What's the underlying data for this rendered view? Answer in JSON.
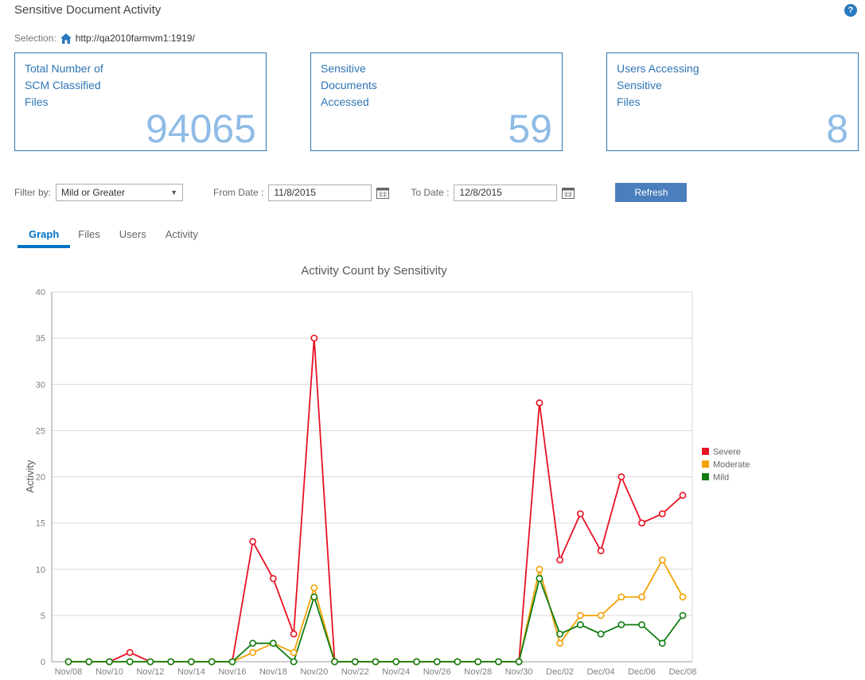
{
  "header": {
    "title": "Sensitive Document Activity",
    "help_label": "?"
  },
  "selection": {
    "label": "Selection:",
    "url": "http://qa2010farmvm1:1919/"
  },
  "cards": [
    {
      "lines": [
        "Total Number of",
        "SCM Classified",
        "Files"
      ],
      "value": "94065"
    },
    {
      "lines": [
        "Sensitive",
        "Documents",
        "Accessed"
      ],
      "value": "59"
    },
    {
      "lines": [
        "Users Accessing",
        "Sensitive",
        "Files"
      ],
      "value": "8"
    }
  ],
  "filters": {
    "filter_by_label": "Filter by:",
    "filter_value": "Mild or Greater",
    "from_label": "From Date :",
    "from_value": "11/8/2015",
    "to_label": "To Date :",
    "to_value": "12/8/2015",
    "refresh_label": "Refresh"
  },
  "tabs": [
    {
      "label": "Graph",
      "active": true
    },
    {
      "label": "Files",
      "active": false
    },
    {
      "label": "Users",
      "active": false
    },
    {
      "label": "Activity",
      "active": false
    }
  ],
  "chart_data": {
    "type": "line",
    "title": "Activity Count by Sensitivity",
    "xlabel": "",
    "ylabel": "Activity",
    "ylim": [
      0,
      40
    ],
    "ytick_step": 5,
    "grid": true,
    "legend_position": "right",
    "marker": "open-circle",
    "x": [
      "Nov/08",
      "Nov/09",
      "Nov/10",
      "Nov/11",
      "Nov/12",
      "Nov/13",
      "Nov/14",
      "Nov/15",
      "Nov/16",
      "Nov/17",
      "Nov/18",
      "Nov/19",
      "Nov/20",
      "Nov/21",
      "Nov/22",
      "Nov/23",
      "Nov/24",
      "Nov/25",
      "Nov/26",
      "Nov/27",
      "Nov/28",
      "Nov/29",
      "Nov/30",
      "Dec/01",
      "Dec/02",
      "Dec/03",
      "Dec/04",
      "Dec/05",
      "Dec/06",
      "Dec/07",
      "Dec/08"
    ],
    "xtick_every": 2,
    "series": [
      {
        "name": "Severe",
        "color": "#e81123",
        "values": [
          0,
          0,
          0,
          1,
          0,
          0,
          0,
          0,
          0,
          13,
          9,
          3,
          35,
          0,
          0,
          0,
          0,
          0,
          0,
          0,
          0,
          0,
          0,
          28,
          11,
          16,
          12,
          20,
          15,
          16,
          18
        ]
      },
      {
        "name": "Moderate",
        "color": "#f2a104",
        "values": [
          0,
          0,
          0,
          0,
          0,
          0,
          0,
          0,
          0,
          1,
          2,
          1,
          8,
          0,
          0,
          0,
          0,
          0,
          0,
          0,
          0,
          0,
          0,
          10,
          2,
          5,
          5,
          7,
          7,
          11,
          7
        ]
      },
      {
        "name": "Mild",
        "color": "#107c10",
        "values": [
          0,
          0,
          0,
          0,
          0,
          0,
          0,
          0,
          0,
          2,
          2,
          0,
          7,
          0,
          0,
          0,
          0,
          0,
          0,
          0,
          0,
          0,
          0,
          9,
          3,
          4,
          3,
          4,
          4,
          2,
          5
        ]
      }
    ]
  }
}
